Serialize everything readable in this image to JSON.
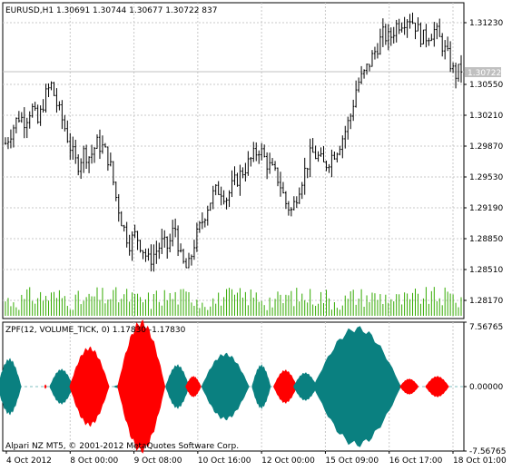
{
  "main_title": "EURUSD,H1  1.30691 1.30744 1.30677 1.30722  837",
  "ind_title": "ZPF(12, VOLUME_TICK, 0) 1.17830 -1.17830",
  "copyright": "Alpari NZ MT5, © 2001-2012 MetaQuotes Software Corp.",
  "bid_price": "1.30722",
  "colors": {
    "up": "#0a8080",
    "down": "#ff0000",
    "bar": "#000000",
    "volume": "#33aa00",
    "grid": "#c8c8c8",
    "bid": "#c0c0c0"
  },
  "chart_data": [
    {
      "type": "candlestick",
      "title": "EURUSD,H1",
      "ohlc_last": {
        "open": 1.30691,
        "high": 1.30744,
        "low": 1.30677,
        "close": 1.30722,
        "volume": 837
      },
      "y_ticks": [
        "1.31230",
        "1.30550",
        "1.30210",
        "1.29870",
        "1.29530",
        "1.29190",
        "1.28850",
        "1.28510",
        "1.28170"
      ],
      "y_tick_values": [
        1.3123,
        1.3055,
        1.3021,
        1.2987,
        1.2953,
        1.2919,
        1.2885,
        1.2851,
        1.2817
      ],
      "ylim": [
        1.28,
        1.3145
      ],
      "x_ticks": [
        "4 Oct 2012",
        "8 Oct 00:00",
        "9 Oct 08:00",
        "10 Oct 16:00",
        "12 Oct 00:00",
        "15 Oct 09:00",
        "16 Oct 17:00",
        "18 Oct 01:00"
      ],
      "close_path": [
        1.299,
        1.3005,
        1.302,
        1.3015,
        1.303,
        1.3012,
        1.304,
        1.3055,
        1.303,
        1.301,
        1.2985,
        1.2965,
        1.298,
        1.2975,
        1.299,
        1.2985,
        1.297,
        1.293,
        1.29,
        1.288,
        1.289,
        1.2875,
        1.286,
        1.287,
        1.288,
        1.2875,
        1.29,
        1.286,
        1.285,
        1.288,
        1.29,
        1.292,
        1.2935,
        1.294,
        1.293,
        1.2945,
        1.2955,
        1.2965,
        1.2975,
        1.2985,
        1.297,
        1.296,
        1.295,
        1.2925,
        1.2915,
        1.294,
        1.296,
        1.298,
        1.2975,
        1.2965,
        1.2975,
        1.2985,
        1.3,
        1.302,
        1.3055,
        1.3065,
        1.308,
        1.3095,
        1.311,
        1.3105,
        1.312,
        1.3125,
        1.313,
        1.312,
        1.3105,
        1.311,
        1.3115,
        1.31,
        1.3085,
        1.3065,
        1.3072
      ]
    },
    {
      "type": "area",
      "title": "ZPF(12, VOLUME_TICK, 0)",
      "values": [
        1.1783,
        -1.1783
      ],
      "y_ticks": [
        "7.56765",
        "0.00000",
        "-7.56765"
      ],
      "y_tick_values": [
        7.56765,
        0,
        -7.56765
      ],
      "ylim": [
        -7.56765,
        7.56765
      ],
      "lobes": [
        {
          "center": 0.5,
          "half_width": 1.5,
          "amplitude": 3.2,
          "sign": "up"
        },
        {
          "center": 5.0,
          "half_width": 0.15,
          "amplitude": 0.25,
          "sign": "down"
        },
        {
          "center": 7.0,
          "half_width": 1.5,
          "amplitude": 2.0,
          "sign": "up"
        },
        {
          "center": 10.5,
          "half_width": 2.5,
          "amplitude": 4.5,
          "sign": "down"
        },
        {
          "center": 14.5,
          "half_width": 1.0,
          "amplitude": 0.25,
          "sign": "up"
        },
        {
          "center": 17.0,
          "half_width": 3.0,
          "amplitude": 7.5,
          "sign": "down"
        },
        {
          "center": 21.5,
          "half_width": 1.5,
          "amplitude": 2.5,
          "sign": "up"
        },
        {
          "center": 23.5,
          "half_width": 1.0,
          "amplitude": 1.2,
          "sign": "down"
        },
        {
          "center": 27.5,
          "half_width": 3.0,
          "amplitude": 3.8,
          "sign": "up"
        },
        {
          "center": 32.0,
          "half_width": 1.2,
          "amplitude": 2.5,
          "sign": "up"
        },
        {
          "center": 35.0,
          "half_width": 1.5,
          "amplitude": 1.9,
          "sign": "down"
        },
        {
          "center": 37.5,
          "half_width": 1.5,
          "amplitude": 1.6,
          "sign": "up"
        },
        {
          "center": 44.0,
          "half_width": 5.5,
          "amplitude": 6.8,
          "sign": "up"
        },
        {
          "center": 50.5,
          "half_width": 1.2,
          "amplitude": 0.9,
          "sign": "down"
        },
        {
          "center": 54.0,
          "half_width": 1.5,
          "amplitude": 1.2,
          "sign": "down"
        }
      ]
    }
  ]
}
